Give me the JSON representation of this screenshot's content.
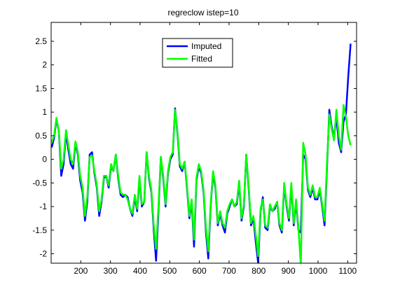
{
  "chart_data": {
    "type": "line",
    "title": "regreclow istep=10",
    "xlabel": "",
    "ylabel": "",
    "xlim": [
      100,
      1130
    ],
    "ylim": [
      -2.2,
      2.9
    ],
    "grid": false,
    "legend_position": "top-center",
    "x_ticks": [
      200,
      300,
      400,
      500,
      600,
      700,
      800,
      900,
      1000,
      1100
    ],
    "y_ticks": [
      2.5,
      2,
      1.5,
      1,
      0.5,
      0,
      -0.5,
      -1,
      -1.5,
      -2
    ],
    "colors": {
      "imputed": "#0000FF",
      "fitted": "#00FF00",
      "axes": "#000000",
      "background": "#FFFFFF"
    },
    "series": [
      {
        "name": "Imputed",
        "color": "#0000FF",
        "points": [
          [
            102,
            0.25
          ],
          [
            110,
            0.45
          ],
          [
            118,
            0.85
          ],
          [
            126,
            0.6
          ],
          [
            134,
            -0.35
          ],
          [
            142,
            -0.1
          ],
          [
            150,
            0.55
          ],
          [
            158,
            0.2
          ],
          [
            166,
            -0.1
          ],
          [
            174,
            -0.2
          ],
          [
            182,
            0.35
          ],
          [
            190,
            0.1
          ],
          [
            198,
            -0.45
          ],
          [
            206,
            -0.7
          ],
          [
            214,
            -1.3
          ],
          [
            222,
            -0.9
          ],
          [
            230,
            0.1
          ],
          [
            238,
            0.15
          ],
          [
            246,
            -0.3
          ],
          [
            254,
            -0.6
          ],
          [
            262,
            -1.2
          ],
          [
            270,
            -0.9
          ],
          [
            278,
            -0.4
          ],
          [
            286,
            -0.35
          ],
          [
            294,
            -0.6
          ],
          [
            302,
            -0.15
          ],
          [
            310,
            -0.25
          ],
          [
            318,
            0.1
          ],
          [
            326,
            -0.4
          ],
          [
            334,
            -0.75
          ],
          [
            342,
            -0.8
          ],
          [
            350,
            -0.75
          ],
          [
            358,
            -0.8
          ],
          [
            366,
            -1.05
          ],
          [
            374,
            -1.2
          ],
          [
            382,
            -0.8
          ],
          [
            390,
            -1.1
          ],
          [
            398,
            -0.4
          ],
          [
            406,
            -1.0
          ],
          [
            414,
            -0.9
          ],
          [
            422,
            0.15
          ],
          [
            430,
            -0.4
          ],
          [
            438,
            -0.7
          ],
          [
            446,
            -1.5
          ],
          [
            454,
            -2.15
          ],
          [
            462,
            -1.1
          ],
          [
            470,
            0.05
          ],
          [
            478,
            -0.4
          ],
          [
            486,
            -1.0
          ],
          [
            494,
            -0.3
          ],
          [
            502,
            0.0
          ],
          [
            510,
            0.1
          ],
          [
            518,
            1.08
          ],
          [
            526,
            0.55
          ],
          [
            534,
            -0.15
          ],
          [
            542,
            -0.25
          ],
          [
            550,
            -0.05
          ],
          [
            558,
            -0.6
          ],
          [
            566,
            -1.25
          ],
          [
            574,
            -0.9
          ],
          [
            582,
            -1.85
          ],
          [
            590,
            -0.45
          ],
          [
            598,
            -0.15
          ],
          [
            606,
            -0.3
          ],
          [
            614,
            -0.7
          ],
          [
            622,
            -1.55
          ],
          [
            630,
            -2.1
          ],
          [
            638,
            -1.0
          ],
          [
            646,
            -0.3
          ],
          [
            654,
            -0.6
          ],
          [
            662,
            -1.4
          ],
          [
            670,
            -1.15
          ],
          [
            678,
            -1.4
          ],
          [
            686,
            -1.55
          ],
          [
            694,
            -1.15
          ],
          [
            702,
            -1.0
          ],
          [
            710,
            -0.85
          ],
          [
            718,
            -1.0
          ],
          [
            726,
            -0.95
          ],
          [
            734,
            -0.5
          ],
          [
            742,
            -1.3
          ],
          [
            750,
            -1.0
          ],
          [
            758,
            0.1
          ],
          [
            766,
            -0.6
          ],
          [
            774,
            -1.4
          ],
          [
            782,
            -1.25
          ],
          [
            790,
            -1.75
          ],
          [
            798,
            -2.2
          ],
          [
            806,
            -1.1
          ],
          [
            814,
            -0.8
          ],
          [
            822,
            -1.45
          ],
          [
            830,
            -1.5
          ],
          [
            838,
            -1.0
          ],
          [
            846,
            -1.1
          ],
          [
            854,
            -1.05
          ],
          [
            862,
            -0.9
          ],
          [
            870,
            -1.4
          ],
          [
            878,
            -1.55
          ],
          [
            886,
            -0.55
          ],
          [
            894,
            -1.0
          ],
          [
            902,
            -1.3
          ],
          [
            910,
            -0.55
          ],
          [
            918,
            -1.4
          ],
          [
            926,
            -0.9
          ],
          [
            934,
            -1.5
          ],
          [
            942,
            -1.55
          ],
          [
            950,
            0.1
          ],
          [
            958,
            0.0
          ],
          [
            966,
            -0.65
          ],
          [
            974,
            -0.8
          ],
          [
            982,
            -0.6
          ],
          [
            990,
            -0.85
          ],
          [
            998,
            -0.85
          ],
          [
            1006,
            -0.65
          ],
          [
            1014,
            -1.0
          ],
          [
            1022,
            -1.4
          ],
          [
            1030,
            -0.2
          ],
          [
            1038,
            1.05
          ],
          [
            1046,
            0.7
          ],
          [
            1054,
            0.45
          ],
          [
            1062,
            0.9
          ],
          [
            1070,
            0.35
          ],
          [
            1078,
            0.15
          ],
          [
            1086,
            0.8
          ],
          [
            1094,
            0.95
          ],
          [
            1102,
            1.75
          ],
          [
            1110,
            2.45
          ]
        ]
      },
      {
        "name": "Fitted",
        "color": "#00FF00",
        "points": [
          [
            102,
            0.35
          ],
          [
            110,
            0.5
          ],
          [
            118,
            0.88
          ],
          [
            126,
            0.6
          ],
          [
            134,
            -0.2
          ],
          [
            142,
            0.0
          ],
          [
            150,
            0.62
          ],
          [
            158,
            0.3
          ],
          [
            166,
            0.0
          ],
          [
            174,
            -0.1
          ],
          [
            182,
            0.38
          ],
          [
            190,
            0.15
          ],
          [
            198,
            -0.35
          ],
          [
            206,
            -0.6
          ],
          [
            214,
            -1.2
          ],
          [
            222,
            -0.8
          ],
          [
            230,
            0.05
          ],
          [
            238,
            0.08
          ],
          [
            246,
            -0.25
          ],
          [
            254,
            -0.55
          ],
          [
            262,
            -1.1
          ],
          [
            270,
            -0.85
          ],
          [
            278,
            -0.35
          ],
          [
            286,
            -0.35
          ],
          [
            294,
            -0.55
          ],
          [
            302,
            -0.1
          ],
          [
            310,
            -0.25
          ],
          [
            318,
            0.1
          ],
          [
            326,
            -0.35
          ],
          [
            334,
            -0.7
          ],
          [
            342,
            -0.75
          ],
          [
            350,
            -0.75
          ],
          [
            358,
            -0.85
          ],
          [
            366,
            -1.05
          ],
          [
            374,
            -1.15
          ],
          [
            382,
            -0.75
          ],
          [
            390,
            -1.05
          ],
          [
            398,
            -0.35
          ],
          [
            406,
            -0.95
          ],
          [
            414,
            -0.9
          ],
          [
            422,
            0.15
          ],
          [
            430,
            -0.35
          ],
          [
            438,
            -0.65
          ],
          [
            446,
            -1.4
          ],
          [
            454,
            -1.9
          ],
          [
            462,
            -1.0
          ],
          [
            470,
            0.05
          ],
          [
            478,
            -0.35
          ],
          [
            486,
            -0.95
          ],
          [
            494,
            -0.25
          ],
          [
            502,
            0.05
          ],
          [
            510,
            0.15
          ],
          [
            518,
            1.05
          ],
          [
            526,
            0.6
          ],
          [
            534,
            -0.1
          ],
          [
            542,
            -0.2
          ],
          [
            550,
            -0.05
          ],
          [
            558,
            -0.55
          ],
          [
            566,
            -1.2
          ],
          [
            574,
            -0.85
          ],
          [
            582,
            -1.7
          ],
          [
            590,
            -0.4
          ],
          [
            598,
            -0.1
          ],
          [
            606,
            -0.25
          ],
          [
            614,
            -0.65
          ],
          [
            622,
            -1.45
          ],
          [
            630,
            -1.95
          ],
          [
            638,
            -0.95
          ],
          [
            646,
            -0.25
          ],
          [
            654,
            -0.55
          ],
          [
            662,
            -1.35
          ],
          [
            670,
            -1.1
          ],
          [
            678,
            -1.35
          ],
          [
            686,
            -1.45
          ],
          [
            694,
            -1.1
          ],
          [
            702,
            -0.95
          ],
          [
            710,
            -0.85
          ],
          [
            718,
            -1.0
          ],
          [
            726,
            -0.9
          ],
          [
            734,
            -0.45
          ],
          [
            742,
            -1.25
          ],
          [
            750,
            -0.95
          ],
          [
            758,
            0.1
          ],
          [
            766,
            -0.55
          ],
          [
            774,
            -1.35
          ],
          [
            782,
            -1.2
          ],
          [
            790,
            -1.6
          ],
          [
            798,
            -2.05
          ],
          [
            806,
            -1.05
          ],
          [
            814,
            -0.85
          ],
          [
            822,
            -1.4
          ],
          [
            830,
            -1.45
          ],
          [
            838,
            -0.95
          ],
          [
            846,
            -1.1
          ],
          [
            854,
            -1.0
          ],
          [
            862,
            -0.9
          ],
          [
            870,
            -1.35
          ],
          [
            878,
            -1.5
          ],
          [
            886,
            -0.5
          ],
          [
            894,
            -0.95
          ],
          [
            902,
            -1.25
          ],
          [
            910,
            -0.5
          ],
          [
            918,
            -1.35
          ],
          [
            926,
            -0.85
          ],
          [
            934,
            -1.45
          ],
          [
            942,
            -2.25
          ],
          [
            950,
            0.35
          ],
          [
            958,
            0.1
          ],
          [
            966,
            -0.6
          ],
          [
            974,
            -0.75
          ],
          [
            982,
            -0.55
          ],
          [
            990,
            -0.8
          ],
          [
            998,
            -0.8
          ],
          [
            1006,
            -0.6
          ],
          [
            1014,
            -0.95
          ],
          [
            1022,
            -1.3
          ],
          [
            1030,
            -0.1
          ],
          [
            1038,
            0.95
          ],
          [
            1046,
            0.65
          ],
          [
            1054,
            0.4
          ],
          [
            1062,
            1.05
          ],
          [
            1070,
            0.5
          ],
          [
            1078,
            0.2
          ],
          [
            1086,
            1.15
          ],
          [
            1094,
            0.9
          ],
          [
            1102,
            0.5
          ],
          [
            1110,
            0.3
          ]
        ]
      }
    ]
  }
}
